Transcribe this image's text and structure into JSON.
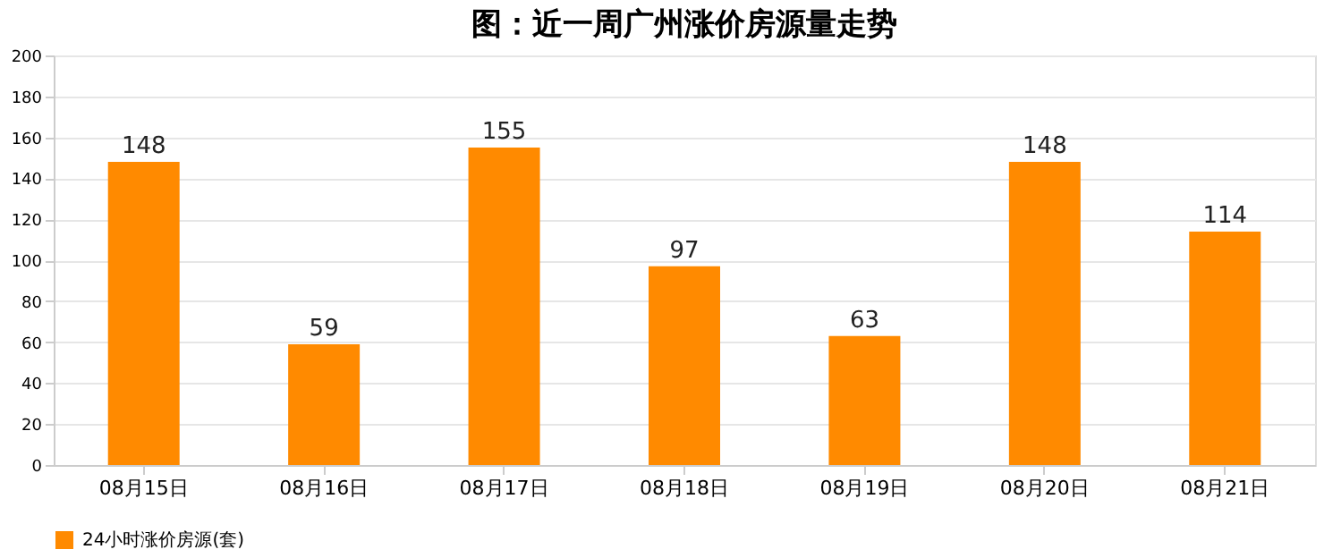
{
  "chart_data": {
    "type": "bar",
    "title": "图：近一周广州涨价房源量走势",
    "categories": [
      "08月15日",
      "08月16日",
      "08月17日",
      "08月18日",
      "08月19日",
      "08月20日",
      "08月21日"
    ],
    "series": [
      {
        "name": "24小时涨价房源(套)",
        "color": "#ff8a00",
        "values": [
          148,
          59,
          155,
          97,
          63,
          148,
          114
        ]
      }
    ],
    "ylim": [
      0,
      200
    ],
    "yticks": [
      0,
      20,
      40,
      60,
      80,
      100,
      120,
      140,
      160,
      180,
      200
    ],
    "grid": "y",
    "legend": "bottom",
    "data_labels": true
  }
}
